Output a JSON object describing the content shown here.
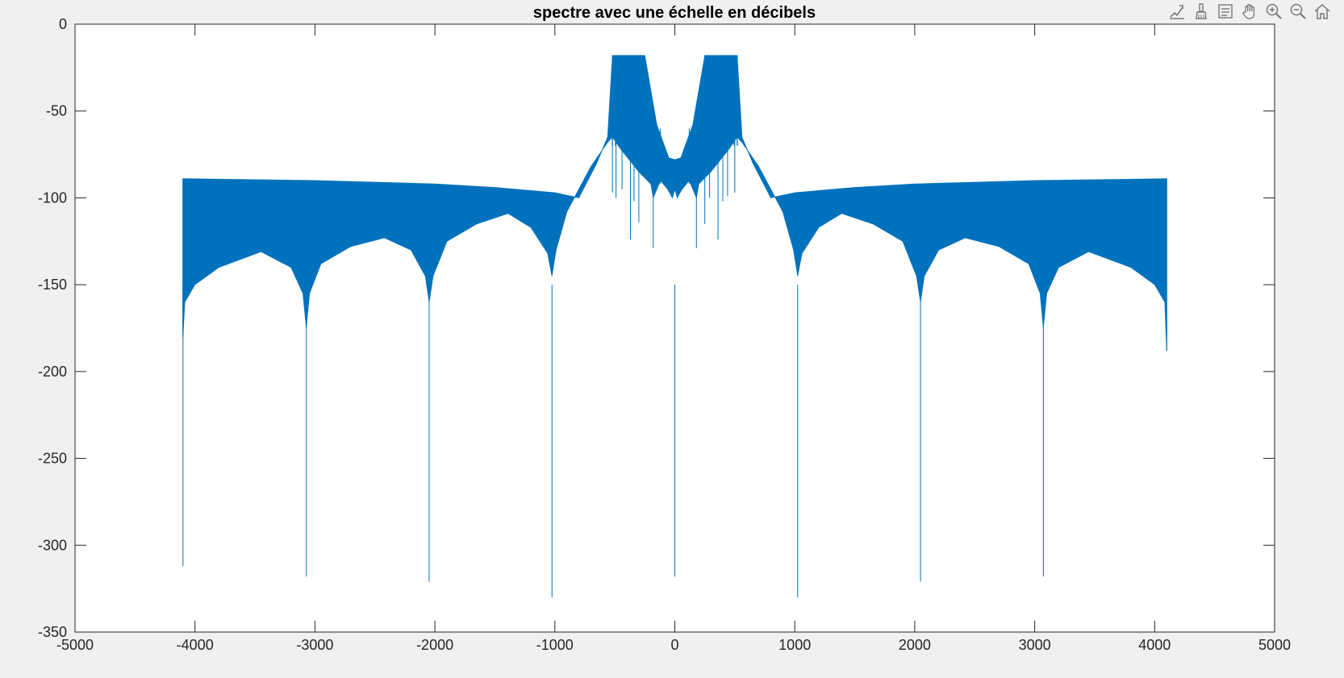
{
  "toolbar": {
    "items": [
      {
        "name": "edit-data-tip-icon"
      },
      {
        "name": "brush-icon"
      },
      {
        "name": "data-cursor-icon"
      },
      {
        "name": "pan-hand-icon"
      },
      {
        "name": "zoom-in-icon"
      },
      {
        "name": "zoom-out-icon"
      },
      {
        "name": "home-restore-icon"
      }
    ]
  },
  "chart_data": {
    "type": "line",
    "title": "spectre avec une échelle en décibels",
    "xlabel": "",
    "ylabel": "",
    "xlim": [
      -5000,
      5000
    ],
    "ylim": [
      -350,
      0
    ],
    "xticks": [
      -5000,
      -4000,
      -3000,
      -2000,
      -1000,
      0,
      1000,
      2000,
      3000,
      4000,
      5000
    ],
    "yticks": [
      0,
      -50,
      -100,
      -150,
      -200,
      -250,
      -300,
      -350
    ],
    "xtick_labels": [
      "-5000",
      "-4000",
      "-3000",
      "-2000",
      "-1000",
      "0",
      "1000",
      "2000",
      "3000",
      "4000",
      "5000"
    ],
    "ytick_labels": [
      "0",
      "-50",
      "-100",
      "-150",
      "-200",
      "-250",
      "-300",
      "-350"
    ],
    "grid": false,
    "line_color": "#0072bd",
    "series": [
      {
        "upper_envelope": {
          "x": [
            -4100,
            -3000,
            -2000,
            -1500,
            -1000,
            -800,
            -650,
            -560,
            -520,
            -250,
            -150,
            -50,
            0,
            50,
            150,
            250,
            520,
            560,
            650,
            800,
            1000,
            1500,
            2000,
            3000,
            4100
          ],
          "y": [
            -89,
            -90,
            -92,
            -94,
            -97,
            -100,
            -80,
            -65,
            -18,
            -18,
            -58,
            -77,
            -78,
            -77,
            -58,
            -18,
            -18,
            -65,
            -80,
            -100,
            -97,
            -94,
            -92,
            -90,
            -89
          ]
        },
        "lower_envelope": {
          "x": [
            -4100,
            -4085,
            -4000,
            -3800,
            -3450,
            -3200,
            -3100,
            -3072,
            -3045,
            -2950,
            -2700,
            -2420,
            -2200,
            -2080,
            -2048,
            -2015,
            -1900,
            -1650,
            -1390,
            -1200,
            -1060,
            -1024,
            -990,
            -900,
            -800,
            -700,
            -560,
            -520,
            -450,
            -300,
            -200,
            -180,
            -120,
            -60,
            -20,
            0,
            20,
            60,
            120,
            180,
            200,
            300,
            450,
            520,
            560,
            700,
            800,
            900,
            990,
            1024,
            1060,
            1200,
            1390,
            1650,
            1900,
            2015,
            2048,
            2080,
            2200,
            2420,
            2700,
            2950,
            3045,
            3072,
            3100,
            3200,
            3450,
            3800,
            4000,
            4085,
            4100
          ],
          "y": [
            -180,
            -160,
            -150,
            -140,
            -131,
            -140,
            -155,
            -175,
            -155,
            -138,
            -128,
            -123,
            -130,
            -145,
            -160,
            -145,
            -125,
            -115,
            -109,
            -117,
            -132,
            -145,
            -130,
            -108,
            -95,
            -82,
            -68,
            -65,
            -72,
            -85,
            -92,
            -100,
            -90,
            -95,
            -100,
            -95,
            -100,
            -95,
            -90,
            -100,
            -92,
            -85,
            -72,
            -65,
            -68,
            -82,
            -95,
            -108,
            -130,
            -145,
            -132,
            -117,
            -109,
            -115,
            -125,
            -145,
            -160,
            -145,
            -130,
            -123,
            -128,
            -138,
            -155,
            -175,
            -155,
            -140,
            -131,
            -140,
            -150,
            -160,
            -188
          ]
        },
        "nulls": [
          {
            "x": -4100,
            "y": -312
          },
          {
            "x": -3072,
            "y": -318
          },
          {
            "x": -2048,
            "y": -321
          },
          {
            "x": -1024,
            "y": -330
          },
          {
            "x": 0,
            "y": -318
          },
          {
            "x": 1024,
            "y": -330
          },
          {
            "x": 2048,
            "y": -321
          },
          {
            "x": 3072,
            "y": -318
          }
        ],
        "center_spikes": [
          {
            "x": -520,
            "y": -97
          },
          {
            "x": -490,
            "y": -100
          },
          {
            "x": -440,
            "y": -95
          },
          {
            "x": -370,
            "y": -124
          },
          {
            "x": -340,
            "y": -102
          },
          {
            "x": -300,
            "y": -114
          },
          {
            "x": -180,
            "y": -129
          },
          {
            "x": -120,
            "y": -92
          },
          {
            "x": 120,
            "y": -92
          },
          {
            "x": 180,
            "y": -129
          },
          {
            "x": 250,
            "y": -115
          },
          {
            "x": 290,
            "y": -100
          },
          {
            "x": 360,
            "y": -124
          },
          {
            "x": 400,
            "y": -102
          },
          {
            "x": 440,
            "y": -99
          },
          {
            "x": 500,
            "y": -97
          }
        ],
        "peak_lines_x": [
          -520,
          -495,
          -470,
          -440,
          -400,
          -370,
          -340,
          -300,
          -270,
          -255,
          250,
          265,
          295,
          330,
          370,
          400,
          440,
          470,
          495,
          520
        ]
      }
    ]
  }
}
